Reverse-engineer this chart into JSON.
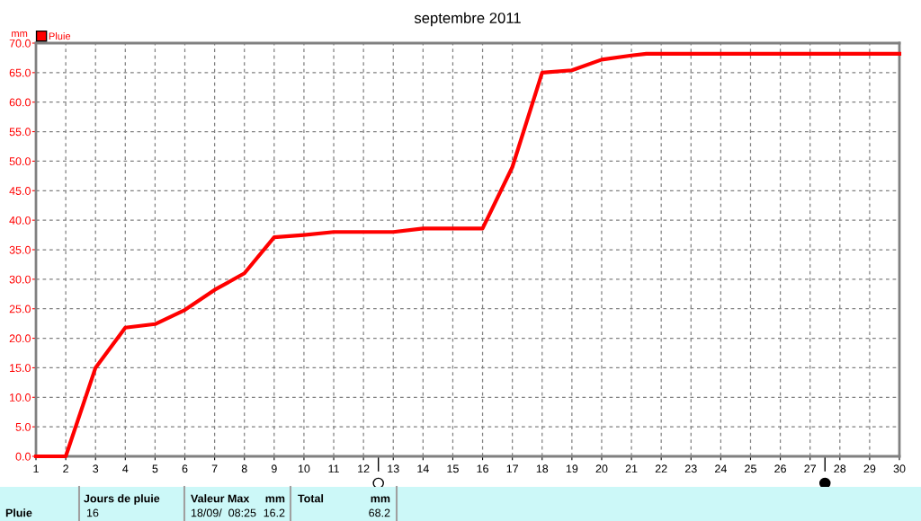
{
  "chart_data": {
    "type": "line",
    "title": "septembre 2011",
    "ylabel": "mm",
    "x": [
      1,
      2,
      3,
      4,
      5,
      6,
      7,
      8,
      9,
      10,
      11,
      13,
      14,
      16,
      17,
      18,
      19,
      20,
      21,
      21.5,
      30
    ],
    "series": [
      {
        "name": "Pluie",
        "color": "#ff0000",
        "values": [
          0,
          0,
          15.0,
          21.8,
          22.4,
          24.8,
          28.2,
          31.0,
          37.1,
          37.5,
          38.0,
          38.0,
          38.6,
          38.6,
          49.0,
          65.0,
          65.4,
          67.2,
          67.9,
          68.2,
          68.2
        ]
      }
    ],
    "xlim": [
      1,
      30
    ],
    "xticks": [
      1,
      2,
      3,
      4,
      5,
      6,
      7,
      8,
      9,
      10,
      11,
      12,
      13,
      14,
      15,
      16,
      17,
      18,
      19,
      20,
      21,
      22,
      23,
      24,
      25,
      26,
      27,
      28,
      29,
      30
    ],
    "ylim": [
      0,
      70
    ],
    "yticks": [
      {
        "value": 0,
        "label": "0.0"
      },
      {
        "value": 5,
        "label": "5.0"
      },
      {
        "value": 10,
        "label": "10.0"
      },
      {
        "value": 15,
        "label": "15.0"
      },
      {
        "value": 20,
        "label": "20.0"
      },
      {
        "value": 25,
        "label": "25.0"
      },
      {
        "value": 30,
        "label": "30.0"
      },
      {
        "value": 35,
        "label": "35.0"
      },
      {
        "value": 40,
        "label": "40.0"
      },
      {
        "value": 45,
        "label": "45.0"
      },
      {
        "value": 50,
        "label": "50.0"
      },
      {
        "value": 55,
        "label": "55.0"
      },
      {
        "value": 60,
        "label": "60.0"
      },
      {
        "value": 65,
        "label": "65.0"
      },
      {
        "value": 70,
        "label": "70.0"
      }
    ],
    "grid": true,
    "legend": "top left",
    "marker": "none",
    "line_style": "solid",
    "annotations": [
      "Jours de pluie",
      "Valeur Max",
      "mm",
      "Total",
      "mm",
      "Pluie",
      "16",
      "18/09/  08:25",
      "16.2",
      "68.2"
    ]
  }
}
